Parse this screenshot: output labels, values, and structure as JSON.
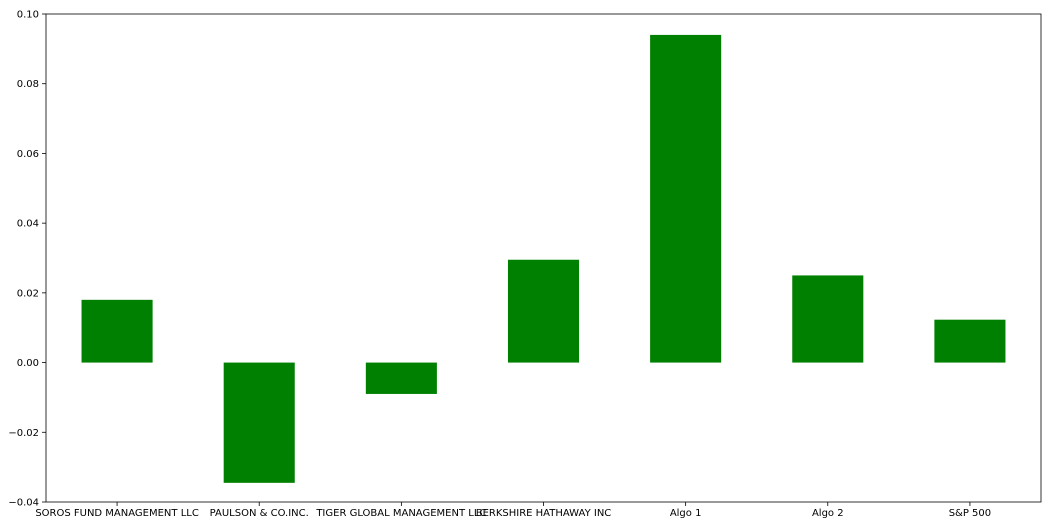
{
  "chart_data": {
    "type": "bar",
    "title": "",
    "xlabel": "",
    "ylabel": "",
    "categories": [
      "SOROS FUND MANAGEMENT LLC",
      "PAULSON & CO.INC.",
      "TIGER GLOBAL MANAGEMENT LLC",
      "BERKSHIRE HATHAWAY INC",
      "Algo 1",
      "Algo 2",
      "S&P 500"
    ],
    "values": [
      0.018,
      -0.0345,
      -0.009,
      0.0295,
      0.094,
      0.025,
      0.0123
    ],
    "ylim": [
      -0.04,
      0.1
    ],
    "yticks": [
      -0.04,
      -0.02,
      0.0,
      0.02,
      0.04,
      0.06,
      0.08,
      0.1
    ],
    "ytick_labels": [
      "−0.04",
      "−0.02",
      "0.00",
      "0.02",
      "0.04",
      "0.06",
      "0.08",
      "0.10"
    ],
    "bar_color": "#008000",
    "grid": false,
    "legend": false
  }
}
